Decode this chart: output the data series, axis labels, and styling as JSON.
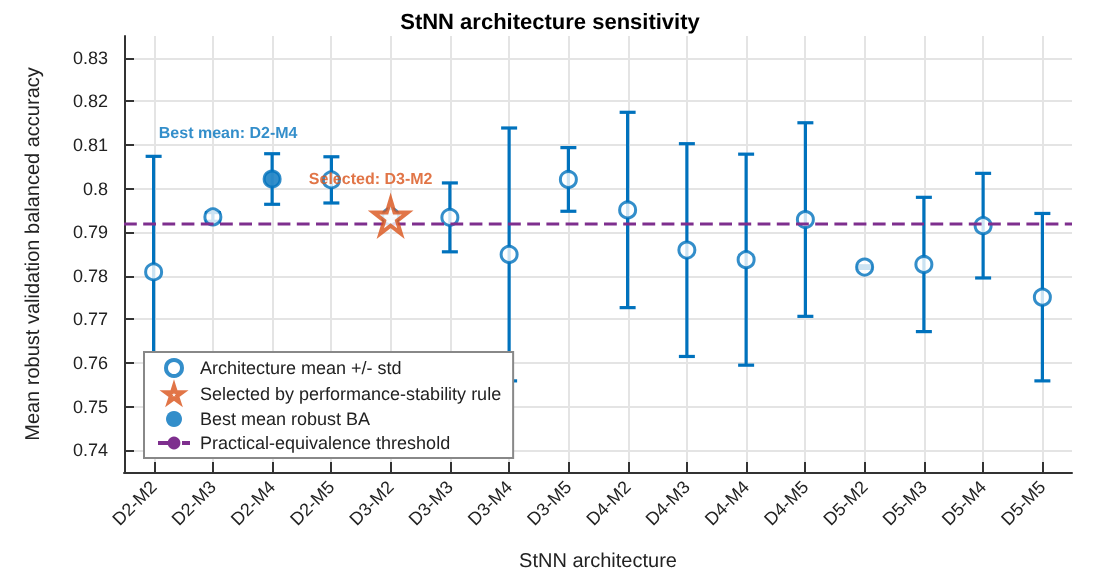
{
  "chart_data": {
    "type": "scatter",
    "title": "StNN architecture sensitivity",
    "xlabel": "StNN architecture",
    "ylabel": "Mean robust validation balanced accuracy",
    "categories": [
      "D2-M2",
      "D2-M3",
      "D2-M4",
      "D2-M5",
      "D3-M2",
      "D3-M3",
      "D3-M4",
      "D3-M5",
      "D4-M2",
      "D4-M3",
      "D4-M4",
      "D4-M5",
      "D5-M2",
      "D5-M3",
      "D5-M4",
      "D5-M5"
    ],
    "series": [
      {
        "name": "Architecture mean +/- std",
        "color": "#0072bd",
        "marker": "circle",
        "values": [
          0.7809,
          0.7935,
          0.8022,
          0.802,
          0.7936,
          0.7934,
          0.7849,
          0.8021,
          0.7951,
          0.7859,
          0.7837,
          0.7929,
          0.782,
          0.7826,
          0.7915,
          0.7751
        ],
        "errors": [
          0.0265,
          0.001,
          0.0058,
          0.0053,
          0.0005,
          0.0079,
          0.029,
          0.0073,
          0.0224,
          0.0244,
          0.0242,
          0.0222,
          0.0003,
          0.0154,
          0.012,
          0.0192
        ]
      },
      {
        "name": "Selected by performance-stability rule",
        "color": "#d95319",
        "marker": "star",
        "x": [
          "D3-M2"
        ],
        "values": [
          0.7936
        ]
      },
      {
        "name": "Best mean robust BA",
        "color": "#0072bd",
        "marker": "circle",
        "x": [
          "D2-M4"
        ],
        "values": [
          0.8022
        ]
      }
    ],
    "ref_lines": [
      {
        "axis": "y",
        "value": 0.792,
        "label": "Practical-equivalence threshold",
        "color": "#7e2f8e",
        "line_style": "dashed"
      }
    ],
    "annotations": [
      {
        "text": "Best mean: D2-M4",
        "x": "D2-M4",
        "y": 0.8022
      },
      {
        "text": "Selected: D3-M2",
        "x": "D3-M2",
        "y": 0.7936
      }
    ],
    "ylim": [
      0.735,
      0.835
    ],
    "yticks": [
      0.74,
      0.75,
      0.76,
      0.77,
      0.78,
      0.79,
      0.8,
      0.81,
      0.82,
      0.83
    ],
    "grid": true,
    "legend": "bottom left"
  }
}
